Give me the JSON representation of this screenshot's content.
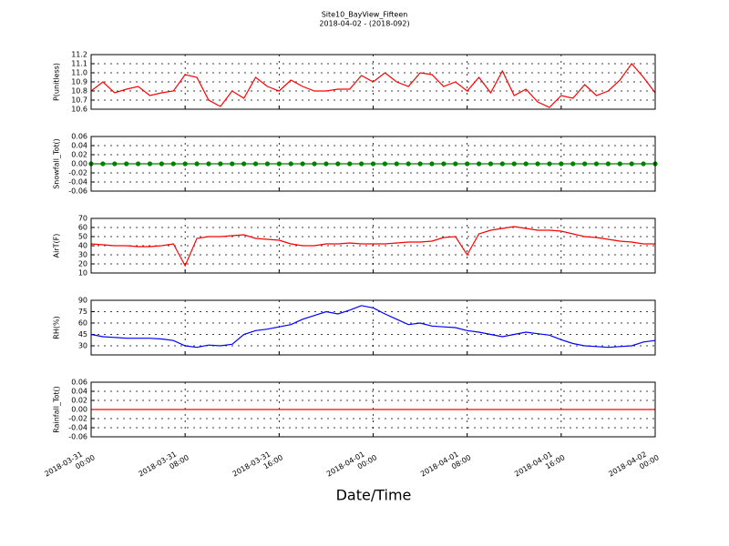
{
  "title": "Site10_BayView_Fifteen",
  "subtitle": "2018-04-02 - (2018-092)",
  "xlabel": "Date/Time",
  "chart_data": [
    {
      "type": "line",
      "ylabel": "P(unitless)",
      "color": "#ff0000",
      "x": [
        "2018-03-31 00:00",
        "2018-03-31 01:00",
        "2018-03-31 02:00",
        "2018-03-31 03:00",
        "2018-03-31 04:00",
        "2018-03-31 05:00",
        "2018-03-31 06:00",
        "2018-03-31 07:00",
        "2018-03-31 08:00",
        "2018-03-31 09:00",
        "2018-03-31 10:00",
        "2018-03-31 11:00",
        "2018-03-31 12:00",
        "2018-03-31 13:00",
        "2018-03-31 14:00",
        "2018-03-31 15:00",
        "2018-03-31 16:00",
        "2018-03-31 17:00",
        "2018-03-31 18:00",
        "2018-03-31 19:00",
        "2018-03-31 20:00",
        "2018-03-31 21:00",
        "2018-03-31 22:00",
        "2018-03-31 23:00",
        "2018-04-01 00:00",
        "2018-04-01 01:00",
        "2018-04-01 02:00",
        "2018-04-01 03:00",
        "2018-04-01 04:00",
        "2018-04-01 05:00",
        "2018-04-01 06:00",
        "2018-04-01 07:00",
        "2018-04-01 08:00",
        "2018-04-01 09:00",
        "2018-04-01 10:00",
        "2018-04-01 11:00",
        "2018-04-01 12:00",
        "2018-04-01 13:00",
        "2018-04-01 14:00",
        "2018-04-01 15:00",
        "2018-04-01 16:00",
        "2018-04-01 17:00",
        "2018-04-01 18:00",
        "2018-04-01 19:00",
        "2018-04-01 20:00",
        "2018-04-01 21:00",
        "2018-04-01 22:00",
        "2018-04-01 23:00",
        "2018-04-02 00:00"
      ],
      "values": [
        10.8,
        10.9,
        10.78,
        10.82,
        10.85,
        10.75,
        10.78,
        10.8,
        10.98,
        10.95,
        10.7,
        10.63,
        10.8,
        10.72,
        10.95,
        10.85,
        10.8,
        10.92,
        10.85,
        10.8,
        10.8,
        10.82,
        10.82,
        10.97,
        10.9,
        11.0,
        10.9,
        10.85,
        11.0,
        10.98,
        10.85,
        10.9,
        10.8,
        10.95,
        10.78,
        11.02,
        10.75,
        10.82,
        10.68,
        10.62,
        10.75,
        10.72,
        10.87,
        10.75,
        10.8,
        10.92,
        11.1,
        10.95,
        10.78
      ],
      "xlim": [
        "2018-03-31 00:00",
        "2018-04-02 00:00"
      ],
      "xticks": [
        "2018-03-31 00:00",
        "2018-03-31 08:00",
        "2018-03-31 16:00",
        "2018-04-01 00:00",
        "2018-04-01 08:00",
        "2018-04-01 16:00",
        "2018-04-02 00:00"
      ],
      "ylim": [
        10.6,
        11.2
      ],
      "yticks": [
        10.6,
        10.7,
        10.8,
        10.9,
        {
          "value": 11,
          "label": "11.0"
        },
        11.1,
        11.2
      ],
      "grid": true
    },
    {
      "type": "line",
      "ylabel": "Snowfall_Tot()",
      "color": "#008000",
      "marker": true,
      "x": [
        "2018-03-31 00:00",
        "2018-03-31 01:00",
        "2018-03-31 02:00",
        "2018-03-31 03:00",
        "2018-03-31 04:00",
        "2018-03-31 05:00",
        "2018-03-31 06:00",
        "2018-03-31 07:00",
        "2018-03-31 08:00",
        "2018-03-31 09:00",
        "2018-03-31 10:00",
        "2018-03-31 11:00",
        "2018-03-31 12:00",
        "2018-03-31 13:00",
        "2018-03-31 14:00",
        "2018-03-31 15:00",
        "2018-03-31 16:00",
        "2018-03-31 17:00",
        "2018-03-31 18:00",
        "2018-03-31 19:00",
        "2018-03-31 20:00",
        "2018-03-31 21:00",
        "2018-03-31 22:00",
        "2018-03-31 23:00",
        "2018-04-01 00:00",
        "2018-04-01 01:00",
        "2018-04-01 02:00",
        "2018-04-01 03:00",
        "2018-04-01 04:00",
        "2018-04-01 05:00",
        "2018-04-01 06:00",
        "2018-04-01 07:00",
        "2018-04-01 08:00",
        "2018-04-01 09:00",
        "2018-04-01 10:00",
        "2018-04-01 11:00",
        "2018-04-01 12:00",
        "2018-04-01 13:00",
        "2018-04-01 14:00",
        "2018-04-01 15:00",
        "2018-04-01 16:00",
        "2018-04-01 17:00",
        "2018-04-01 18:00",
        "2018-04-01 19:00",
        "2018-04-01 20:00",
        "2018-04-01 21:00",
        "2018-04-01 22:00",
        "2018-04-01 23:00",
        "2018-04-02 00:00"
      ],
      "values": [
        0,
        0,
        0,
        0,
        0,
        0,
        0,
        0,
        0,
        0,
        0,
        0,
        0,
        0,
        0,
        0,
        0,
        0,
        0,
        0,
        0,
        0,
        0,
        0,
        0,
        0,
        0,
        0,
        0,
        0,
        0,
        0,
        0,
        0,
        0,
        0,
        0,
        0,
        0,
        0,
        0,
        0,
        0,
        0,
        0,
        0,
        0,
        0,
        0
      ],
      "xlim": [
        "2018-03-31 00:00",
        "2018-04-02 00:00"
      ],
      "xticks": [
        "2018-03-31 00:00",
        "2018-03-31 08:00",
        "2018-03-31 16:00",
        "2018-04-01 00:00",
        "2018-04-01 08:00",
        "2018-04-01 16:00",
        "2018-04-02 00:00"
      ],
      "ylim": [
        -0.06,
        0.06
      ],
      "yticks": [
        -0.06,
        -0.04,
        -0.02,
        {
          "value": 0,
          "label": "0.00"
        },
        0.02,
        0.04,
        0.06
      ],
      "grid": true
    },
    {
      "type": "line",
      "ylabel": "AirT(F)",
      "color": "#ff0000",
      "x": [
        "2018-03-31 00:00",
        "2018-03-31 01:00",
        "2018-03-31 02:00",
        "2018-03-31 03:00",
        "2018-03-31 04:00",
        "2018-03-31 05:00",
        "2018-03-31 06:00",
        "2018-03-31 07:00",
        "2018-03-31 08:00",
        "2018-03-31 09:00",
        "2018-03-31 10:00",
        "2018-03-31 11:00",
        "2018-03-31 12:00",
        "2018-03-31 13:00",
        "2018-03-31 14:00",
        "2018-03-31 15:00",
        "2018-03-31 16:00",
        "2018-03-31 17:00",
        "2018-03-31 18:00",
        "2018-03-31 19:00",
        "2018-03-31 20:00",
        "2018-03-31 21:00",
        "2018-03-31 22:00",
        "2018-03-31 23:00",
        "2018-04-01 00:00",
        "2018-04-01 01:00",
        "2018-04-01 02:00",
        "2018-04-01 03:00",
        "2018-04-01 04:00",
        "2018-04-01 05:00",
        "2018-04-01 06:00",
        "2018-04-01 07:00",
        "2018-04-01 08:00",
        "2018-04-01 09:00",
        "2018-04-01 10:00",
        "2018-04-01 11:00",
        "2018-04-01 12:00",
        "2018-04-01 13:00",
        "2018-04-01 14:00",
        "2018-04-01 15:00",
        "2018-04-01 16:00",
        "2018-04-01 17:00",
        "2018-04-01 18:00",
        "2018-04-01 19:00",
        "2018-04-01 20:00",
        "2018-04-01 21:00",
        "2018-04-01 22:00",
        "2018-04-01 23:00",
        "2018-04-02 00:00"
      ],
      "values": [
        42,
        41,
        40,
        40,
        39,
        39,
        40,
        42,
        18,
        48,
        50,
        50,
        51,
        52,
        48,
        47,
        46,
        42,
        40,
        40,
        42,
        42,
        43,
        42,
        42,
        42,
        43,
        44,
        44,
        45,
        49,
        50,
        30,
        53,
        57,
        59,
        61,
        59,
        57,
        57,
        56,
        53,
        50,
        49,
        47,
        45,
        44,
        42,
        42
      ],
      "xlim": [
        "2018-03-31 00:00",
        "2018-04-02 00:00"
      ],
      "xticks": [
        "2018-03-31 00:00",
        "2018-03-31 08:00",
        "2018-03-31 16:00",
        "2018-04-01 00:00",
        "2018-04-01 08:00",
        "2018-04-01 16:00",
        "2018-04-02 00:00"
      ],
      "ylim": [
        10,
        70
      ],
      "yticks": [
        10,
        20,
        30,
        40,
        50,
        60,
        70
      ],
      "grid": true
    },
    {
      "type": "line",
      "ylabel": "RH(%)",
      "color": "#0000ff",
      "x": [
        "2018-03-31 00:00",
        "2018-03-31 01:00",
        "2018-03-31 02:00",
        "2018-03-31 03:00",
        "2018-03-31 04:00",
        "2018-03-31 05:00",
        "2018-03-31 06:00",
        "2018-03-31 07:00",
        "2018-03-31 08:00",
        "2018-03-31 09:00",
        "2018-03-31 10:00",
        "2018-03-31 11:00",
        "2018-03-31 12:00",
        "2018-03-31 13:00",
        "2018-03-31 14:00",
        "2018-03-31 15:00",
        "2018-03-31 16:00",
        "2018-03-31 17:00",
        "2018-03-31 18:00",
        "2018-03-31 19:00",
        "2018-03-31 20:00",
        "2018-03-31 21:00",
        "2018-03-31 22:00",
        "2018-03-31 23:00",
        "2018-04-01 00:00",
        "2018-04-01 01:00",
        "2018-04-01 02:00",
        "2018-04-01 03:00",
        "2018-04-01 04:00",
        "2018-04-01 05:00",
        "2018-04-01 06:00",
        "2018-04-01 07:00",
        "2018-04-01 08:00",
        "2018-04-01 09:00",
        "2018-04-01 10:00",
        "2018-04-01 11:00",
        "2018-04-01 12:00",
        "2018-04-01 13:00",
        "2018-04-01 14:00",
        "2018-04-01 15:00",
        "2018-04-01 16:00",
        "2018-04-01 17:00",
        "2018-04-01 18:00",
        "2018-04-01 19:00",
        "2018-04-01 20:00",
        "2018-04-01 21:00",
        "2018-04-01 22:00",
        "2018-04-01 23:00",
        "2018-04-02 00:00"
      ],
      "values": [
        45,
        42,
        41,
        40,
        40,
        40,
        39,
        37,
        30,
        28,
        31,
        30,
        32,
        45,
        50,
        52,
        55,
        58,
        65,
        70,
        75,
        72,
        77,
        83,
        80,
        72,
        65,
        58,
        60,
        56,
        55,
        54,
        50,
        48,
        45,
        42,
        45,
        48,
        46,
        44,
        38,
        33,
        30,
        29,
        28,
        29,
        30,
        35,
        37
      ],
      "xlim": [
        "2018-03-31 00:00",
        "2018-04-02 00:00"
      ],
      "xticks": [
        "2018-03-31 00:00",
        "2018-03-31 08:00",
        "2018-03-31 16:00",
        "2018-04-01 00:00",
        "2018-04-01 08:00",
        "2018-04-01 16:00",
        "2018-04-02 00:00"
      ],
      "ylim": [
        18,
        90
      ],
      "yticks": [
        30,
        45,
        60,
        75,
        90
      ],
      "grid": true
    },
    {
      "type": "line",
      "ylabel": "Rainfall_Tot()",
      "color": "#ff0000",
      "x": [
        "2018-03-31 00:00",
        "2018-03-31 01:00",
        "2018-03-31 02:00",
        "2018-03-31 03:00",
        "2018-03-31 04:00",
        "2018-03-31 05:00",
        "2018-03-31 06:00",
        "2018-03-31 07:00",
        "2018-03-31 08:00",
        "2018-03-31 09:00",
        "2018-03-31 10:00",
        "2018-03-31 11:00",
        "2018-03-31 12:00",
        "2018-03-31 13:00",
        "2018-03-31 14:00",
        "2018-03-31 15:00",
        "2018-03-31 16:00",
        "2018-03-31 17:00",
        "2018-03-31 18:00",
        "2018-03-31 19:00",
        "2018-03-31 20:00",
        "2018-03-31 21:00",
        "2018-03-31 22:00",
        "2018-03-31 23:00",
        "2018-04-01 00:00",
        "2018-04-01 01:00",
        "2018-04-01 02:00",
        "2018-04-01 03:00",
        "2018-04-01 04:00",
        "2018-04-01 05:00",
        "2018-04-01 06:00",
        "2018-04-01 07:00",
        "2018-04-01 08:00",
        "2018-04-01 09:00",
        "2018-04-01 10:00",
        "2018-04-01 11:00",
        "2018-04-01 12:00",
        "2018-04-01 13:00",
        "2018-04-01 14:00",
        "2018-04-01 15:00",
        "2018-04-01 16:00",
        "2018-04-01 17:00",
        "2018-04-01 18:00",
        "2018-04-01 19:00",
        "2018-04-01 20:00",
        "2018-04-01 21:00",
        "2018-04-01 22:00",
        "2018-04-01 23:00",
        "2018-04-02 00:00"
      ],
      "values": [
        0,
        0,
        0,
        0,
        0,
        0,
        0,
        0,
        0,
        0,
        0,
        0,
        0,
        0,
        0,
        0,
        0,
        0,
        0,
        0,
        0,
        0,
        0,
        0,
        0,
        0,
        0,
        0,
        0,
        0,
        0,
        0,
        0,
        0,
        0,
        0,
        0,
        0,
        0,
        0,
        0,
        0,
        0,
        0,
        0,
        0,
        0,
        0,
        0
      ],
      "xlim": [
        "2018-03-31 00:00",
        "2018-04-02 00:00"
      ],
      "xticks": [
        "2018-03-31 00:00",
        "2018-03-31 08:00",
        "2018-03-31 16:00",
        "2018-04-01 00:00",
        "2018-04-01 08:00",
        "2018-04-01 16:00",
        "2018-04-02 00:00"
      ],
      "ylim": [
        -0.06,
        0.06
      ],
      "yticks": [
        -0.06,
        -0.04,
        -0.02,
        {
          "value": 0,
          "label": "0.00"
        },
        0.02,
        0.04,
        0.06
      ],
      "grid": true
    }
  ]
}
